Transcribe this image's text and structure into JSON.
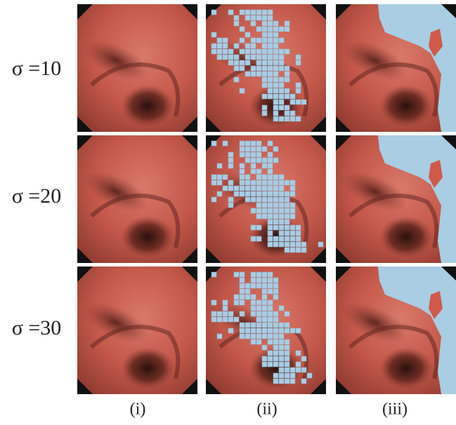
{
  "row_labels": [
    "σ =10",
    "σ =20",
    "σ =30"
  ],
  "column_labels": [
    "(i)",
    "(ii)",
    "(iii)"
  ]
}
